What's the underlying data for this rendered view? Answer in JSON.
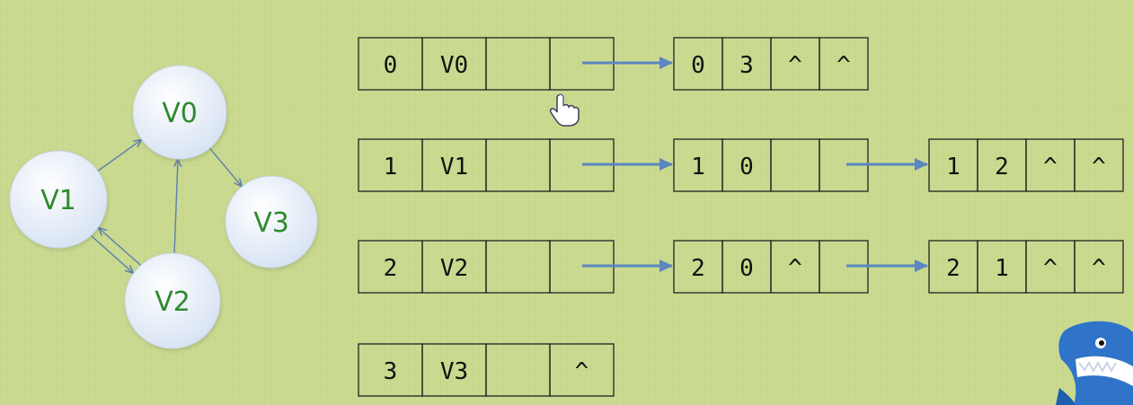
{
  "graph": {
    "nodes": [
      {
        "id": "V0",
        "label": "V0"
      },
      {
        "id": "V1",
        "label": "V1"
      },
      {
        "id": "V2",
        "label": "V2"
      },
      {
        "id": "V3",
        "label": "V3"
      }
    ],
    "edges": [
      {
        "from": "V1",
        "to": "V0"
      },
      {
        "from": "V1",
        "to": "V2"
      },
      {
        "from": "V2",
        "to": "V1"
      },
      {
        "from": "V2",
        "to": "V0"
      },
      {
        "from": "V0",
        "to": "V3"
      }
    ]
  },
  "adjacency_list": [
    {
      "index": "0",
      "vertex": "V0",
      "cells": [
        "",
        ""
      ],
      "arcs": [
        [
          "0",
          "3",
          "^",
          "^"
        ]
      ]
    },
    {
      "index": "1",
      "vertex": "V1",
      "cells": [
        "",
        ""
      ],
      "arcs": [
        [
          "1",
          "0",
          "",
          ""
        ],
        [
          "1",
          "2",
          "^",
          "^"
        ]
      ]
    },
    {
      "index": "2",
      "vertex": "V2",
      "cells": [
        "",
        ""
      ],
      "arcs": [
        [
          "2",
          "0",
          "^",
          ""
        ],
        [
          "2",
          "1",
          "^",
          "^"
        ]
      ]
    },
    {
      "index": "3",
      "vertex": "V3",
      "cells": [
        "",
        "^"
      ],
      "arcs": []
    }
  ],
  "colors": {
    "background": "#c9d98e",
    "node_fill": "#e3ecf8",
    "node_text": "#2e8b2e",
    "edge": "#5b7fb0",
    "pointer_arrow": "#5b86c0",
    "cell_border": "#222222"
  }
}
